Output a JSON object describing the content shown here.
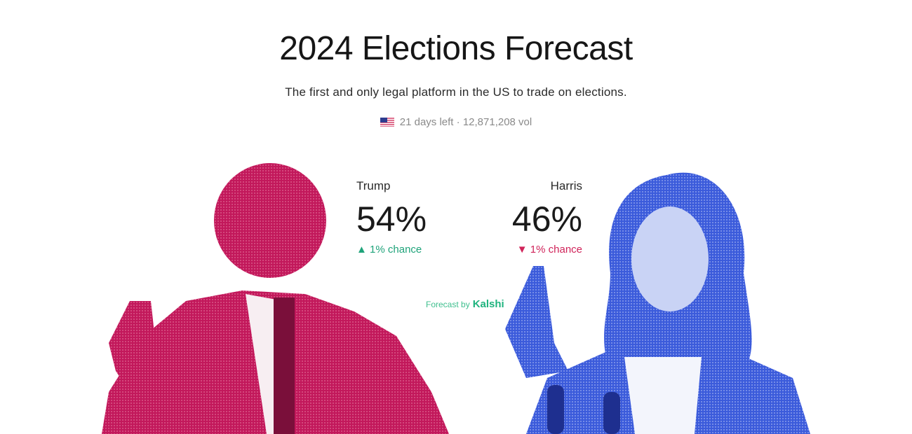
{
  "header": {
    "title": "2024 Elections Forecast",
    "subtitle": "The first and only legal platform in the US to trade on elections.",
    "days_left": "21 days left",
    "separator": "·",
    "volume": "12,871,208 vol",
    "flag_icon": "us-flag-icon"
  },
  "candidates": [
    {
      "name": "Trump",
      "percent": "54%",
      "change": "1% chance",
      "direction": "up",
      "color": "#c2185b"
    },
    {
      "name": "Harris",
      "percent": "46%",
      "change": "1% chance",
      "direction": "down",
      "color": "#3b5bdb"
    }
  ],
  "forecast": {
    "label": "Forecast by",
    "brand": "Kalshi"
  },
  "colors": {
    "up": "#1fa37a",
    "down": "#d0245a"
  }
}
